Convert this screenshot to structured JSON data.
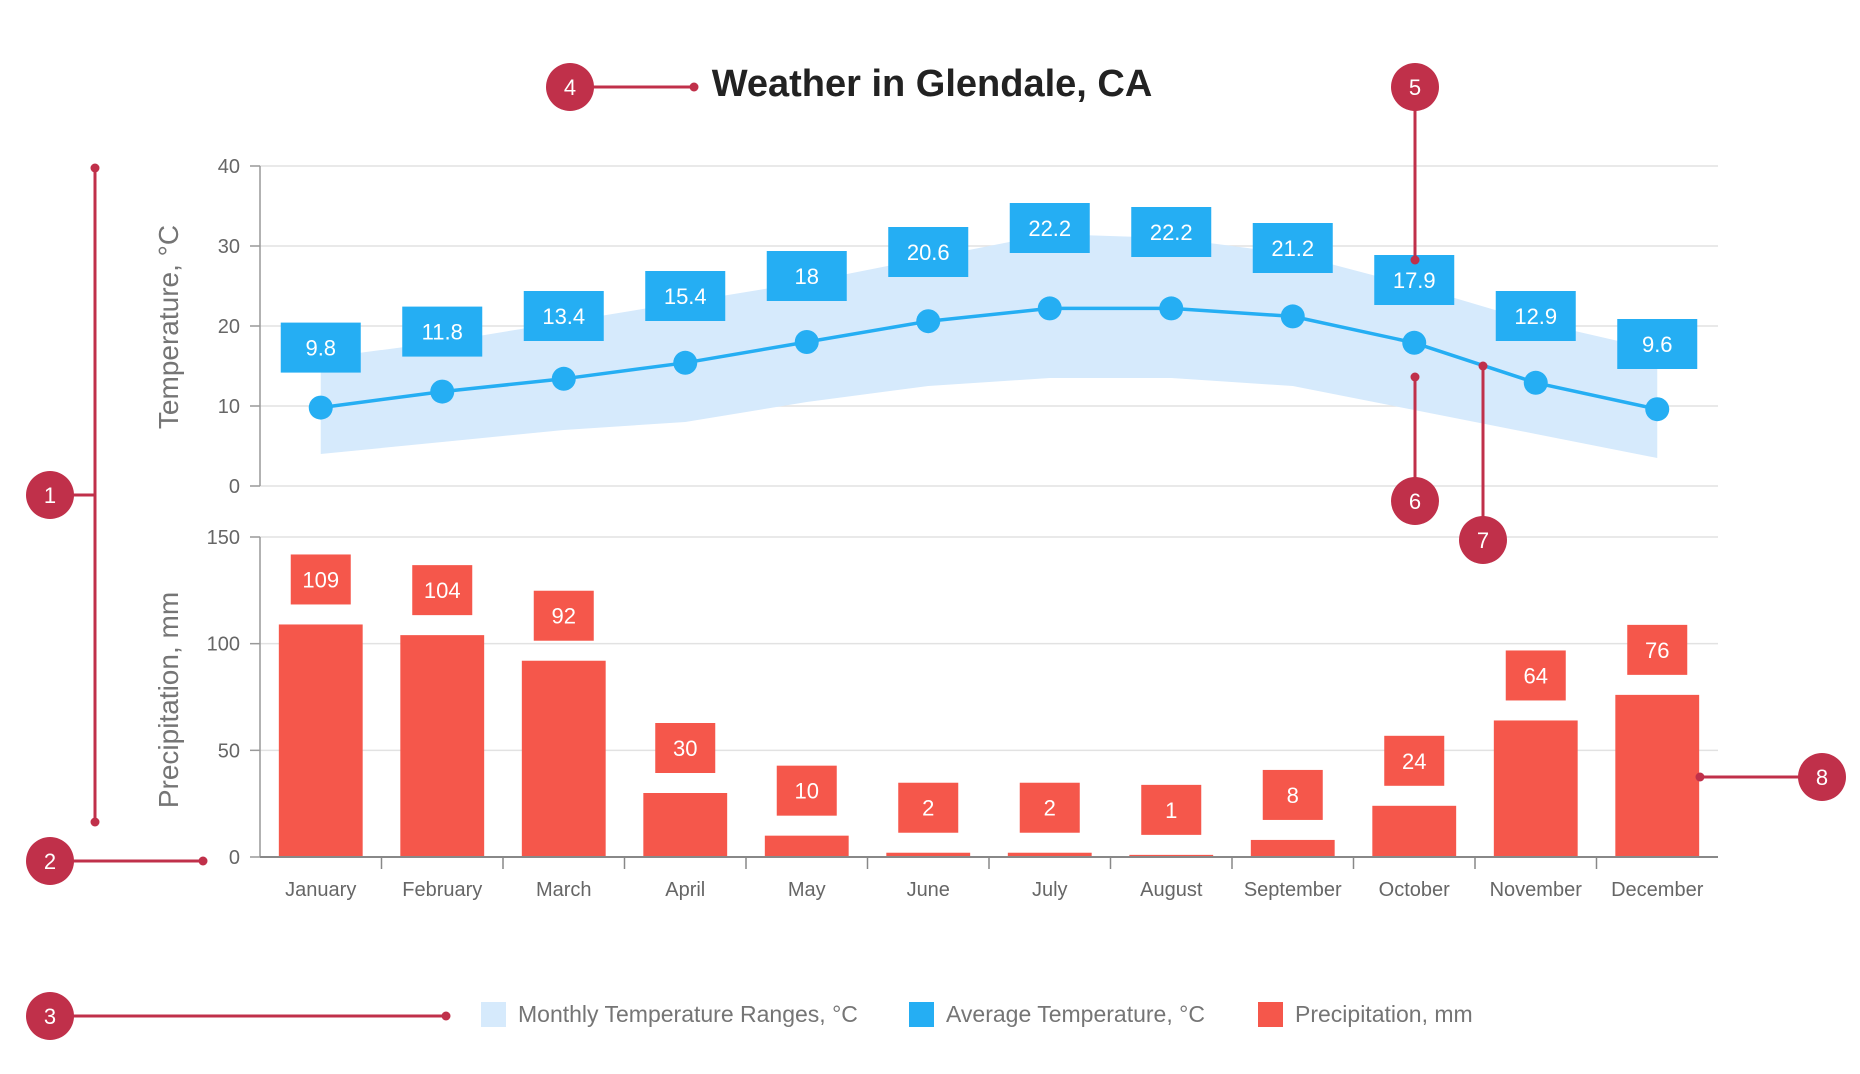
{
  "chart_data": [
    {
      "type": "line",
      "title": "Weather in Glendale, CA",
      "ylabel": "Temperature, °C",
      "ylim": [
        0,
        40
      ],
      "yticks": [
        0,
        10,
        20,
        30,
        40
      ],
      "categories": [
        "January",
        "February",
        "March",
        "April",
        "May",
        "June",
        "July",
        "August",
        "September",
        "October",
        "November",
        "December"
      ],
      "series": [
        {
          "name": "Monthly Temperature Ranges, °C",
          "type": "area-range",
          "color": "#d6eafc",
          "low": [
            4,
            5.5,
            7,
            8,
            10.5,
            12.5,
            13.5,
            13.5,
            12.5,
            9.5,
            6.5,
            3.5
          ],
          "high": [
            16,
            18,
            20.5,
            23,
            25.5,
            28.5,
            31.5,
            31,
            29,
            25,
            20.5,
            17
          ]
        },
        {
          "name": "Average Temperature, °C",
          "type": "line",
          "color": "#25aef3",
          "values": [
            9.8,
            11.8,
            13.4,
            15.4,
            18,
            20.6,
            22.2,
            22.2,
            21.2,
            17.9,
            12.9,
            9.6
          ],
          "labels": [
            "9.8",
            "11.8",
            "13.4",
            "15.4",
            "18",
            "20.6",
            "22.2",
            "22.2",
            "21.2",
            "17.9",
            "12.9",
            "9.6"
          ]
        }
      ]
    },
    {
      "type": "bar",
      "ylabel": "Precipitation, mm",
      "ylim": [
        0,
        150
      ],
      "yticks": [
        0,
        50,
        100,
        150
      ],
      "categories": [
        "January",
        "February",
        "March",
        "April",
        "May",
        "June",
        "July",
        "August",
        "September",
        "October",
        "November",
        "December"
      ],
      "series": [
        {
          "name": "Precipitation, mm",
          "color": "#f5574b",
          "values": [
            109,
            104,
            92,
            30,
            10,
            2,
            2,
            1,
            8,
            24,
            64,
            76
          ],
          "labels": [
            "109",
            "104",
            "92",
            "30",
            "10",
            "2",
            "2",
            "1",
            "8",
            "24",
            "64",
            "76"
          ]
        }
      ]
    }
  ],
  "legend": [
    {
      "label": "Monthly Temperature Ranges, °C",
      "color": "#d6eafc"
    },
    {
      "label": "Average Temperature, °C",
      "color": "#25aef3"
    },
    {
      "label": "Precipitation, mm",
      "color": "#f5574b"
    }
  ],
  "callouts": [
    "1",
    "2",
    "3",
    "4",
    "5",
    "6",
    "7",
    "8"
  ],
  "colors": {
    "callout": "#c0304a",
    "grid": "#e2e2e2",
    "axis": "#bbbbbb"
  }
}
